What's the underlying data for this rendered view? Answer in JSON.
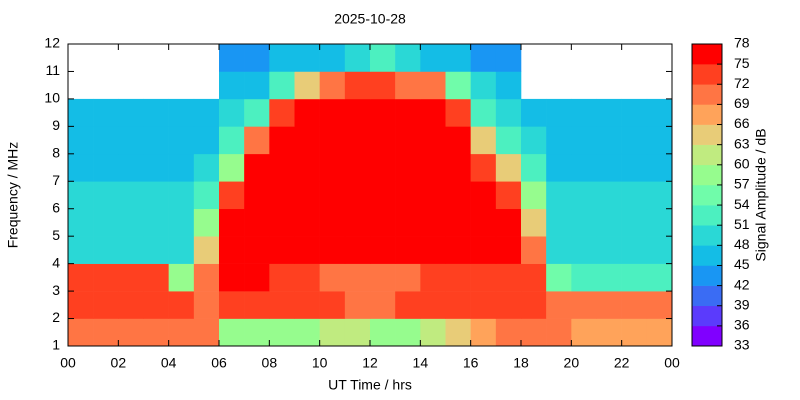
{
  "chart_data": {
    "type": "heatmap",
    "title": "2025-10-28",
    "xlabel": "UT Time / hrs",
    "ylabel": "Frequency / MHz",
    "xlim": [
      0,
      24
    ],
    "ylim": [
      1,
      12
    ],
    "xticks": [
      {
        "value": 0,
        "label": "00"
      },
      {
        "value": 2,
        "label": "02"
      },
      {
        "value": 4,
        "label": "04"
      },
      {
        "value": 6,
        "label": "06"
      },
      {
        "value": 8,
        "label": "08"
      },
      10,
      12,
      14,
      16,
      18,
      20,
      22,
      {
        "value": 24,
        "label": "00"
      }
    ],
    "yticks": [
      1,
      2,
      3,
      4,
      5,
      6,
      7,
      8,
      9,
      10,
      11,
      12
    ],
    "x_bins": [
      0,
      1,
      2,
      3,
      4,
      5,
      6,
      7,
      8,
      9,
      10,
      11,
      12,
      13,
      14,
      15,
      16,
      17,
      18,
      19,
      20,
      21,
      22,
      23,
      24
    ],
    "y_bins": [
      1,
      2,
      3,
      4,
      5,
      6,
      7,
      8,
      9,
      10,
      11,
      12
    ],
    "values": [
      [
        70,
        70,
        70,
        70,
        72,
        72,
        60,
        60,
        60,
        60,
        62,
        62,
        60,
        60,
        62,
        66,
        68,
        70,
        72,
        70,
        68,
        68,
        68,
        68
      ],
      [
        75,
        75,
        75,
        75,
        75,
        72,
        75,
        75,
        75,
        75,
        75,
        72,
        72,
        75,
        75,
        75,
        75,
        75,
        75,
        72,
        72,
        72,
        72,
        72
      ],
      [
        75,
        75,
        75,
        75,
        60,
        72,
        78,
        78,
        75,
        75,
        72,
        72,
        72,
        72,
        75,
        75,
        75,
        75,
        75,
        55,
        52,
        52,
        52,
        52
      ],
      [
        51,
        51,
        51,
        51,
        50,
        65,
        78,
        78,
        78,
        78,
        78,
        78,
        78,
        78,
        78,
        78,
        78,
        78,
        72,
        50,
        50,
        50,
        50,
        50
      ],
      [
        51,
        51,
        51,
        51,
        51,
        60,
        78,
        78,
        78,
        78,
        78,
        78,
        78,
        78,
        78,
        78,
        78,
        78,
        66,
        51,
        51,
        51,
        51,
        51
      ],
      [
        50,
        50,
        50,
        50,
        50,
        54,
        75,
        78,
        78,
        78,
        78,
        78,
        78,
        78,
        78,
        78,
        78,
        75,
        60,
        50,
        50,
        50,
        50,
        50
      ],
      [
        48,
        48,
        48,
        48,
        48,
        50,
        60,
        78,
        78,
        78,
        78,
        78,
        78,
        78,
        78,
        78,
        75,
        66,
        52,
        48,
        48,
        48,
        48,
        48
      ],
      [
        47,
        47,
        47,
        47,
        47,
        48,
        52,
        72,
        78,
        78,
        78,
        78,
        78,
        78,
        78,
        78,
        66,
        52,
        49,
        47,
        47,
        47,
        47,
        47
      ],
      [
        46,
        46,
        46,
        46,
        46,
        48,
        50,
        54,
        75,
        78,
        78,
        78,
        78,
        78,
        78,
        75,
        54,
        50,
        48,
        46,
        46,
        46,
        46,
        46
      ],
      [
        null,
        null,
        null,
        null,
        null,
        null,
        47,
        48,
        54,
        66,
        72,
        75,
        75,
        72,
        72,
        57,
        50,
        48,
        null,
        null,
        null,
        null,
        null,
        null
      ],
      [
        null,
        null,
        null,
        null,
        null,
        null,
        45,
        45,
        46,
        46,
        48,
        50,
        54,
        50,
        48,
        46,
        45,
        45,
        null,
        null,
        null,
        null,
        null,
        null
      ]
    ],
    "colorbar": {
      "label": "Signal Amplitude / dB",
      "ticks": [
        33,
        36,
        39,
        42,
        45,
        48,
        51,
        54,
        57,
        60,
        63,
        66,
        69,
        72,
        75,
        78
      ],
      "colors": [
        "#8000ff",
        "#5b3bfc",
        "#3a6cf4",
        "#1996f3",
        "#14bde6",
        "#2ad8d6",
        "#4cf0c0",
        "#70fcaa",
        "#96fc8e",
        "#c0eb80",
        "#e8cc78",
        "#ffa35a",
        "#ff7544",
        "#ff4020",
        "#ff0000"
      ]
    }
  }
}
